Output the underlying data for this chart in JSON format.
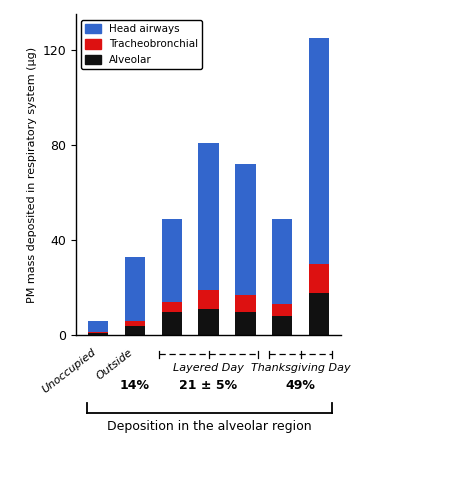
{
  "head_airways": [
    4.5,
    27,
    35,
    62,
    55,
    36,
    95
  ],
  "tracheobronchial": [
    0.5,
    2,
    4,
    8,
    7,
    5,
    12
  ],
  "alveolar": [
    1,
    4,
    10,
    11,
    10,
    8,
    18
  ],
  "bar_color_head": "#3366cc",
  "bar_color_trach": "#dd1111",
  "bar_color_alv": "#111111",
  "bar_width": 0.55,
  "ylabel": "PM mass deposited in respiratory system (μg)",
  "ylim": [
    0,
    135
  ],
  "yticks": [
    0,
    40,
    80,
    120
  ],
  "legend_labels": [
    "Head airways",
    "Tracheobronchial",
    "Alveolar"
  ],
  "pct_14": "14%",
  "pct_21": "21 ± 5%",
  "pct_49": "49%",
  "label_layered": "Layered Day",
  "label_thanksgiving": "Thanksgiving Day",
  "deposition_label": "Deposition in the alveolar region",
  "background_color": "#ffffff"
}
